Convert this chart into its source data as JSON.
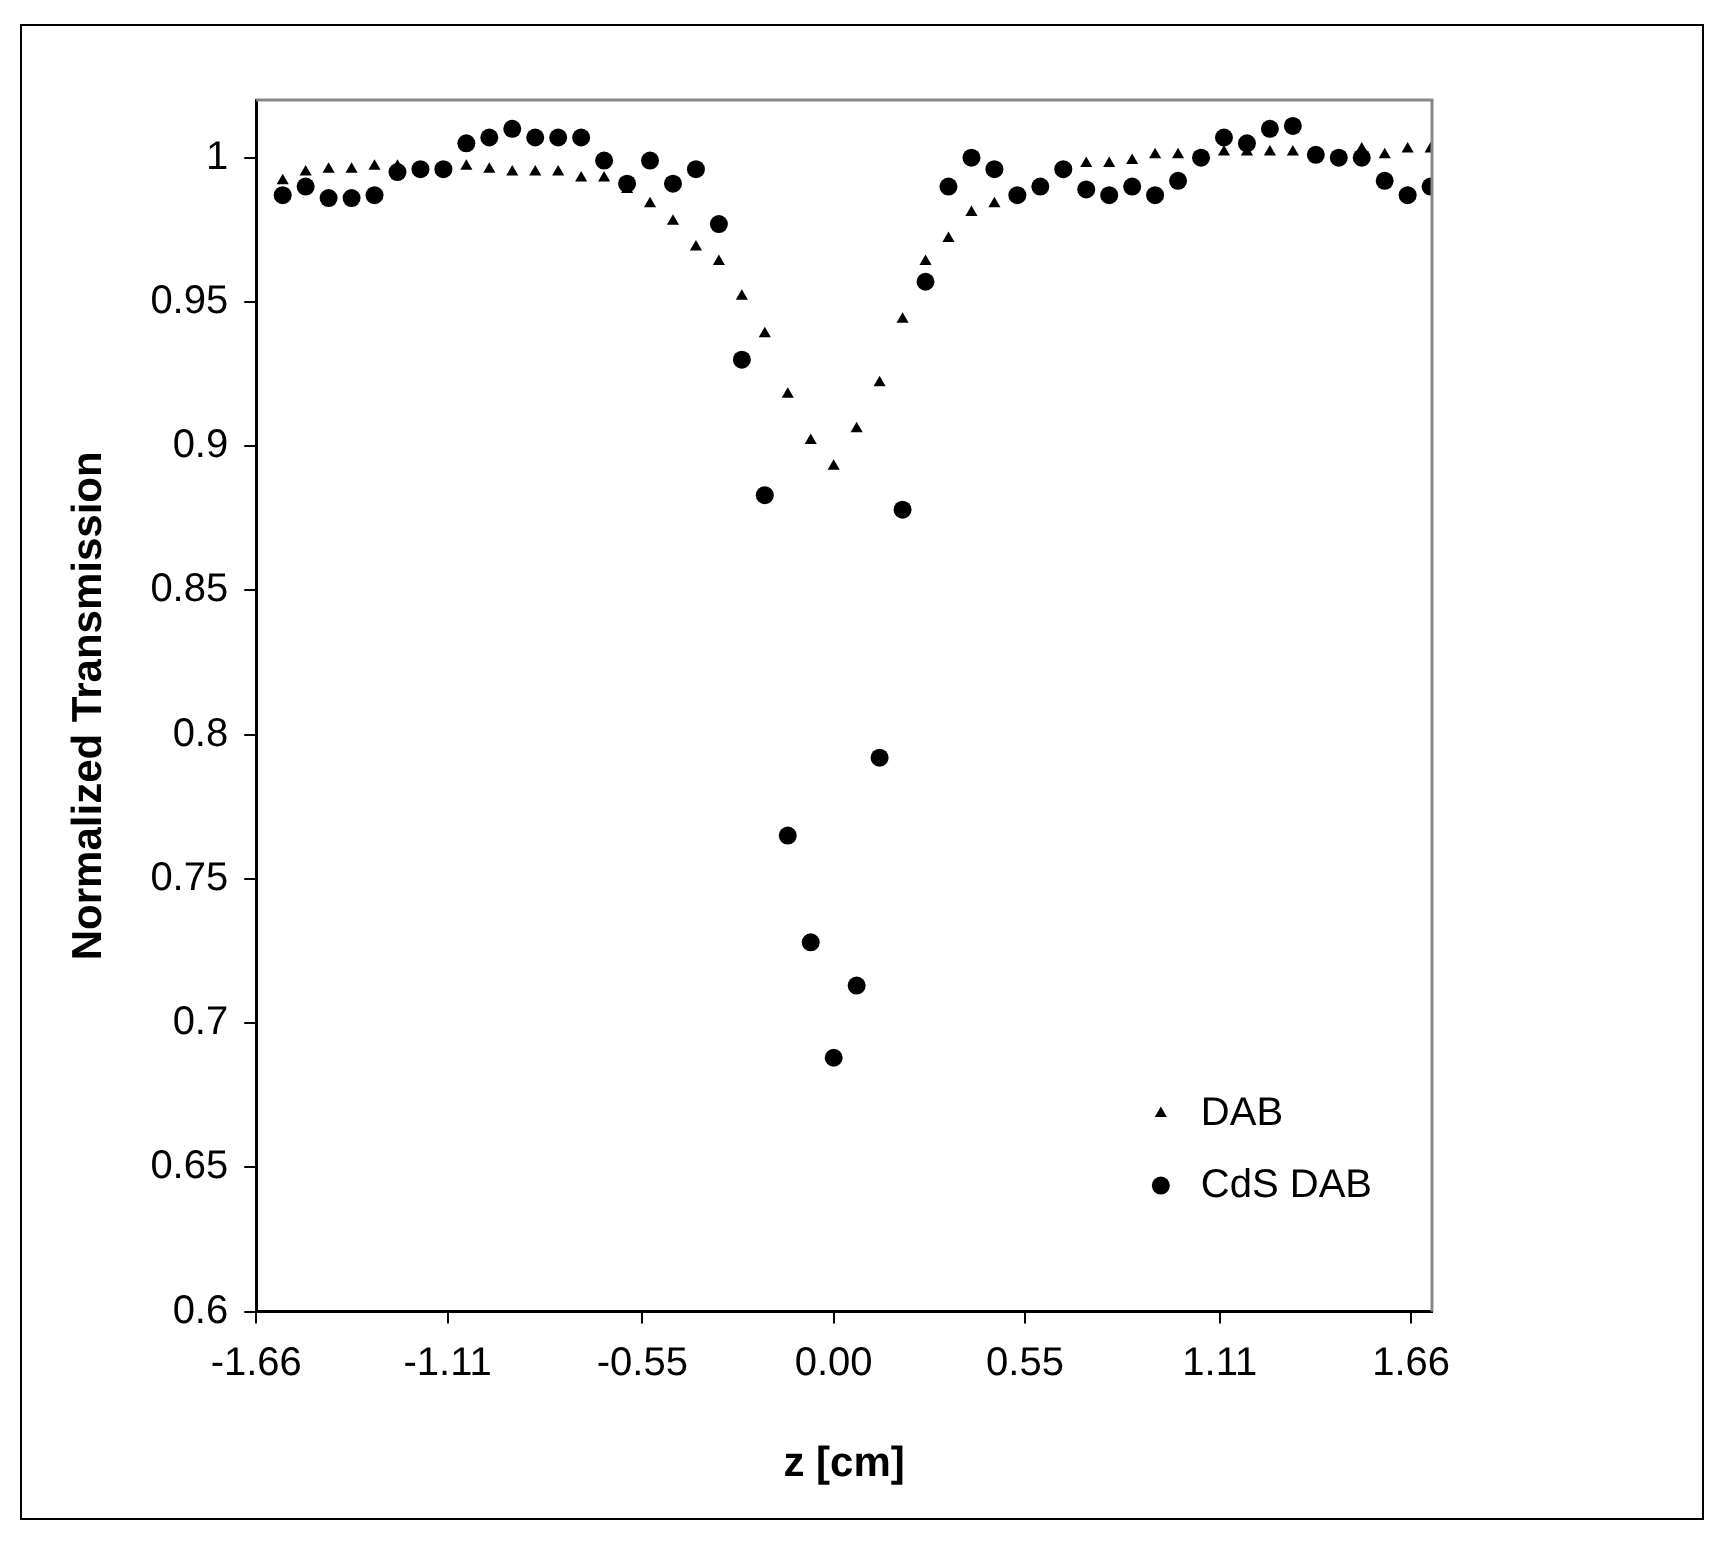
{
  "chart_data": {
    "type": "scatter",
    "xlabel": "z [cm]",
    "ylabel": "Normalized Transmission",
    "x": [
      -1.584,
      -1.518,
      -1.452,
      -1.386,
      -1.32,
      -1.254,
      -1.188,
      -1.122,
      -1.056,
      -0.99,
      -0.924,
      -0.858,
      -0.792,
      -0.726,
      -0.66,
      -0.594,
      -0.528,
      -0.462,
      -0.396,
      -0.33,
      -0.264,
      -0.198,
      -0.132,
      -0.066,
      0,
      0.066,
      0.132,
      0.198,
      0.264,
      0.33,
      0.396,
      0.462,
      0.528,
      0.594,
      0.66,
      0.726,
      0.792,
      0.858,
      0.924,
      0.99,
      1.056,
      1.122,
      1.188,
      1.254,
      1.32,
      1.386,
      1.452,
      1.518,
      1.584,
      1.65,
      1.716
    ],
    "series": [
      {
        "name": "DAB",
        "color": "#000000",
        "marker": "triangle",
        "values": [
          0.992,
          0.995,
          0.996,
          0.996,
          0.997,
          0.997,
          null,
          null,
          0.997,
          0.996,
          0.995,
          0.995,
          0.995,
          0.993,
          0.993,
          0.989,
          0.984,
          0.978,
          0.969,
          0.964,
          0.952,
          0.939,
          0.918,
          0.902,
          0.893,
          0.906,
          0.922,
          0.944,
          0.964,
          0.972,
          0.981,
          0.984,
          null,
          null,
          null,
          0.998,
          0.998,
          0.999,
          1.001,
          1.001,
          null,
          1.002,
          1.002,
          1.002,
          1.002,
          null,
          null,
          1.003,
          1.001,
          1.003,
          1.003
        ]
      },
      {
        "name": "CdS DAB",
        "color": "#000000",
        "marker": "circle",
        "values": [
          0.987,
          0.99,
          0.986,
          0.986,
          0.987,
          0.995,
          0.996,
          0.996,
          1.005,
          1.007,
          1.01,
          1.007,
          1.007,
          1.007,
          0.999,
          0.991,
          0.999,
          0.991,
          0.996,
          0.977,
          0.93,
          0.883,
          0.765,
          0.728,
          0.688,
          0.713,
          0.792,
          0.878,
          0.957,
          0.99,
          1.0,
          0.996,
          0.987,
          0.99,
          0.996,
          0.989,
          0.987,
          0.99,
          0.987,
          0.992,
          1.0,
          1.007,
          1.005,
          1.01,
          1.011,
          1.001,
          1.0,
          1.0,
          0.992,
          0.987,
          0.99
        ]
      }
    ],
    "xlim": [
      -1.66,
      1.72
    ],
    "xticks": [
      -1.66,
      -1.11,
      -0.55,
      {
        "value": 0,
        "label": "0.00"
      },
      0.55,
      1.11,
      1.66
    ],
    "ylim": [
      0.6,
      1.02
    ],
    "yticks": [
      0.6,
      0.65,
      0.7,
      0.75,
      0.8,
      0.85,
      0.9,
      0.95,
      1
    ],
    "legend": "bottom right"
  }
}
